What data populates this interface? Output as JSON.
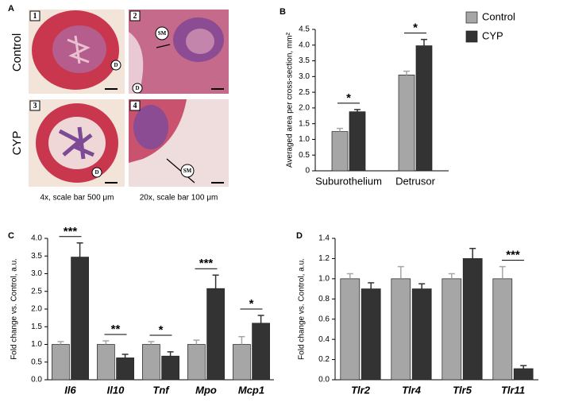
{
  "panel_a": {
    "panel": "A",
    "rows": [
      "Control",
      "CYP"
    ],
    "images": [
      {
        "number": "1",
        "labels": [
          "D"
        ]
      },
      {
        "number": "2",
        "labels": [
          "SM",
          "D"
        ]
      },
      {
        "number": "3",
        "labels": [
          "D"
        ]
      },
      {
        "number": "4",
        "labels": [
          "SM"
        ]
      }
    ],
    "captions": [
      "4x, scale bar 500 μm",
      "20x, scale bar 100 μm"
    ]
  },
  "chart_data": [
    {
      "type": "bar",
      "panel": "B",
      "ylabel": "Averaged area per cross-section, mm²",
      "categories": [
        "Suburothelium",
        "Detrusor"
      ],
      "series": [
        {
          "name": "Control",
          "color": "#a6a6a6",
          "values": [
            1.25,
            3.05
          ],
          "errors": [
            0.1,
            0.12
          ]
        },
        {
          "name": "CYP",
          "color": "#333333",
          "values": [
            1.88,
            3.98
          ],
          "errors": [
            0.07,
            0.2
          ]
        }
      ],
      "significance": [
        "*",
        "*"
      ],
      "legend": "right",
      "ylim": [
        0,
        4.5
      ],
      "yticks": [
        0,
        0.5,
        {
          "value": 1,
          "label": "1.0"
        },
        1.5,
        {
          "value": 2,
          "label": "2.0"
        },
        2.5,
        {
          "value": 3,
          "label": "3.0"
        },
        3.5,
        {
          "value": 4,
          "label": "4.0"
        },
        4.5
      ]
    },
    {
      "type": "bar",
      "panel": "C",
      "ylabel": "Fold change vs. Control, a.u.",
      "categories": [
        "Il6",
        "Il10",
        "Tnf",
        "Mpo",
        "Mcp1"
      ],
      "series": [
        {
          "color": "#a6a6a6",
          "values": [
            1,
            1,
            1,
            1,
            1
          ],
          "errors": [
            0.08,
            0.1,
            0.08,
            0.12,
            0.22
          ]
        },
        {
          "color": "#333333",
          "values": [
            3.47,
            0.62,
            0.67,
            2.58,
            1.6
          ],
          "errors": [
            0.4,
            0.1,
            0.12,
            0.38,
            0.22
          ]
        }
      ],
      "significance": [
        "***",
        "**",
        "*",
        "***",
        "*"
      ],
      "ylim": [
        0,
        4
      ],
      "yticks": [
        {
          "value": 0,
          "label": "0.0"
        },
        0.5,
        {
          "value": 1,
          "label": "1.0"
        },
        1.5,
        {
          "value": 2,
          "label": "2.0"
        },
        2.5,
        {
          "value": 3,
          "label": "3.0"
        },
        3.5,
        {
          "value": 4,
          "label": "4.0"
        }
      ]
    },
    {
      "type": "bar",
      "panel": "D",
      "ylabel": "Fold change vs. Control, a.u.",
      "categories": [
        "Tlr2",
        "Tlr4",
        "Tlr5",
        "Tlr11"
      ],
      "series": [
        {
          "color": "#a6a6a6",
          "values": [
            1,
            1,
            1,
            1
          ],
          "errors": [
            0.05,
            0.12,
            0.05,
            0.12
          ]
        },
        {
          "color": "#333333",
          "values": [
            0.9,
            0.9,
            1.2,
            0.11
          ],
          "errors": [
            0.06,
            0.05,
            0.1,
            0.03
          ]
        }
      ],
      "significance": [
        null,
        null,
        null,
        "***"
      ],
      "ylim": [
        0,
        1.4
      ],
      "yticks": [
        {
          "value": 0,
          "label": "0.0"
        },
        0.2,
        0.4,
        0.6,
        0.8,
        {
          "value": 1,
          "label": "1.0"
        },
        1.2,
        1.4
      ]
    }
  ]
}
